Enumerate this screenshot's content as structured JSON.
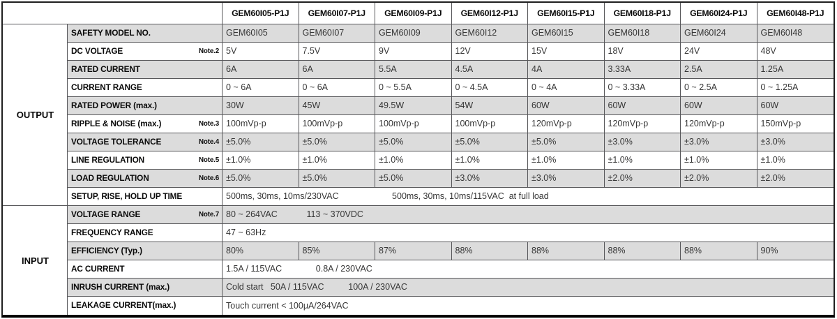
{
  "colors": {
    "row_shade": "#dcdcdc",
    "grid_line": "#57575a",
    "outer_border": "#1f1f1f",
    "bottom_border": "#000000"
  },
  "table": {
    "corner": "",
    "models": [
      "GEM60I05-P1J",
      "GEM60I07-P1J",
      "GEM60I09-P1J",
      "GEM60I12-P1J",
      "GEM60I15-P1J",
      "GEM60I18-P1J",
      "GEM60I24-P1J",
      "GEM60I48-P1J"
    ],
    "sections": [
      {
        "name": "OUTPUT",
        "rows": [
          {
            "label": "SAFETY MODEL NO.",
            "note": "",
            "cells": [
              "GEM60I05",
              "GEM60I07",
              "GEM60I09",
              "GEM60I12",
              "GEM60I15",
              "GEM60I18",
              "GEM60I24",
              "GEM60I48"
            ]
          },
          {
            "label": "DC VOLTAGE",
            "note": "Note.2",
            "cells": [
              "5V",
              "7.5V",
              "9V",
              "12V",
              "15V",
              "18V",
              "24V",
              "48V"
            ]
          },
          {
            "label": "RATED CURRENT",
            "note": "",
            "cells": [
              "6A",
              "6A",
              "5.5A",
              "4.5A",
              "4A",
              "3.33A",
              "2.5A",
              "1.25A"
            ]
          },
          {
            "label": "CURRENT RANGE",
            "note": "",
            "cells": [
              "0 ~ 6A",
              "0 ~ 6A",
              "0 ~ 5.5A",
              "0 ~ 4.5A",
              "0 ~ 4A",
              "0 ~ 3.33A",
              "0 ~ 2.5A",
              "0 ~ 1.25A"
            ]
          },
          {
            "label": "RATED POWER (max.)",
            "note": "",
            "cells": [
              "30W",
              "45W",
              "49.5W",
              "54W",
              "60W",
              "60W",
              "60W",
              "60W"
            ]
          },
          {
            "label": "RIPPLE & NOISE (max.)",
            "note": "Note.3",
            "cells": [
              "100mVp-p",
              "100mVp-p",
              "100mVp-p",
              "100mVp-p",
              "120mVp-p",
              "120mVp-p",
              "120mVp-p",
              "150mVp-p"
            ]
          },
          {
            "label": "VOLTAGE TOLERANCE",
            "note": "Note.4",
            "cells": [
              "±5.0%",
              "±5.0%",
              "±5.0%",
              "±5.0%",
              "±5.0%",
              "±3.0%",
              "±3.0%",
              "±3.0%"
            ]
          },
          {
            "label": "LINE REGULATION",
            "note": "Note.5",
            "cells": [
              "±1.0%",
              "±1.0%",
              "±1.0%",
              "±1.0%",
              "±1.0%",
              "±1.0%",
              "±1.0%",
              "±1.0%"
            ]
          },
          {
            "label": "LOAD REGULATION",
            "note": "Note.6",
            "cells": [
              "±5.0%",
              "±5.0%",
              "±5.0%",
              "±3.0%",
              "±3.0%",
              "±2.0%",
              "±2.0%",
              "±2.0%"
            ]
          },
          {
            "label": "SETUP, RISE, HOLD UP TIME",
            "note": "",
            "span": "500ms, 30ms, 10ms/230VAC                      500ms, 30ms, 10ms/115VAC  at full load"
          }
        ]
      },
      {
        "name": "INPUT",
        "rows": [
          {
            "label": "VOLTAGE RANGE",
            "note": "Note.7",
            "span": "80 ~ 264VAC            113 ~ 370VDC"
          },
          {
            "label": "FREQUENCY RANGE",
            "note": "",
            "span": "47 ~ 63Hz"
          },
          {
            "label": "EFFICIENCY (Typ.)",
            "note": "",
            "cells": [
              "80%",
              "85%",
              "87%",
              "88%",
              "88%",
              "88%",
              "88%",
              "90%"
            ]
          },
          {
            "label": "AC CURRENT",
            "note": "",
            "span": "1.5A / 115VAC              0.8A / 230VAC"
          },
          {
            "label": "INRUSH CURRENT (max.)",
            "note": "",
            "span": "Cold start   50A / 115VAC          100A / 230VAC"
          },
          {
            "label": "LEAKAGE CURRENT(max.)",
            "note": "",
            "span": "Touch current < 100μA/264VAC"
          }
        ]
      }
    ]
  }
}
